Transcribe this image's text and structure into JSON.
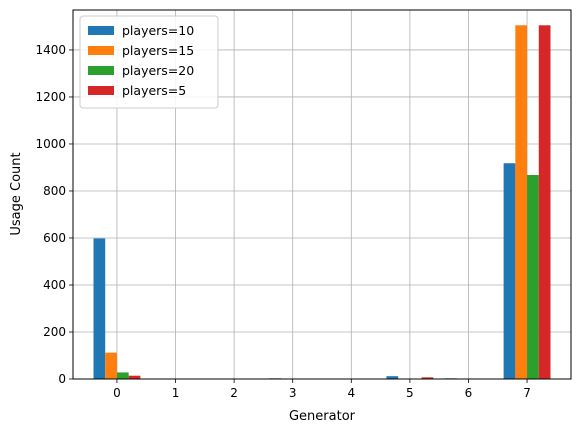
{
  "chart_data": {
    "type": "bar",
    "title": "",
    "xlabel": "Generator",
    "ylabel": "Usage Count",
    "categories": [
      "0",
      "1",
      "2",
      "3",
      "4",
      "5",
      "6",
      "7"
    ],
    "ylim": [
      0,
      1570
    ],
    "yticks": [
      0,
      200,
      400,
      600,
      800,
      1000,
      1200,
      1400
    ],
    "grid": true,
    "legend_position": "top-left",
    "series": [
      {
        "name": "players=10",
        "color": "#1f77b4",
        "values": [
          598,
          0,
          0,
          3,
          0,
          12,
          3,
          918
        ]
      },
      {
        "name": "players=15",
        "color": "#ff7f0e",
        "values": [
          112,
          0,
          0,
          0,
          0,
          2,
          0,
          1505
        ]
      },
      {
        "name": "players=20",
        "color": "#2ca02c",
        "values": [
          28,
          0,
          0,
          0,
          0,
          2,
          0,
          868
        ]
      },
      {
        "name": "players=5",
        "color": "#d62728",
        "values": [
          14,
          0,
          0,
          0,
          0,
          7,
          2,
          1505
        ]
      }
    ]
  }
}
